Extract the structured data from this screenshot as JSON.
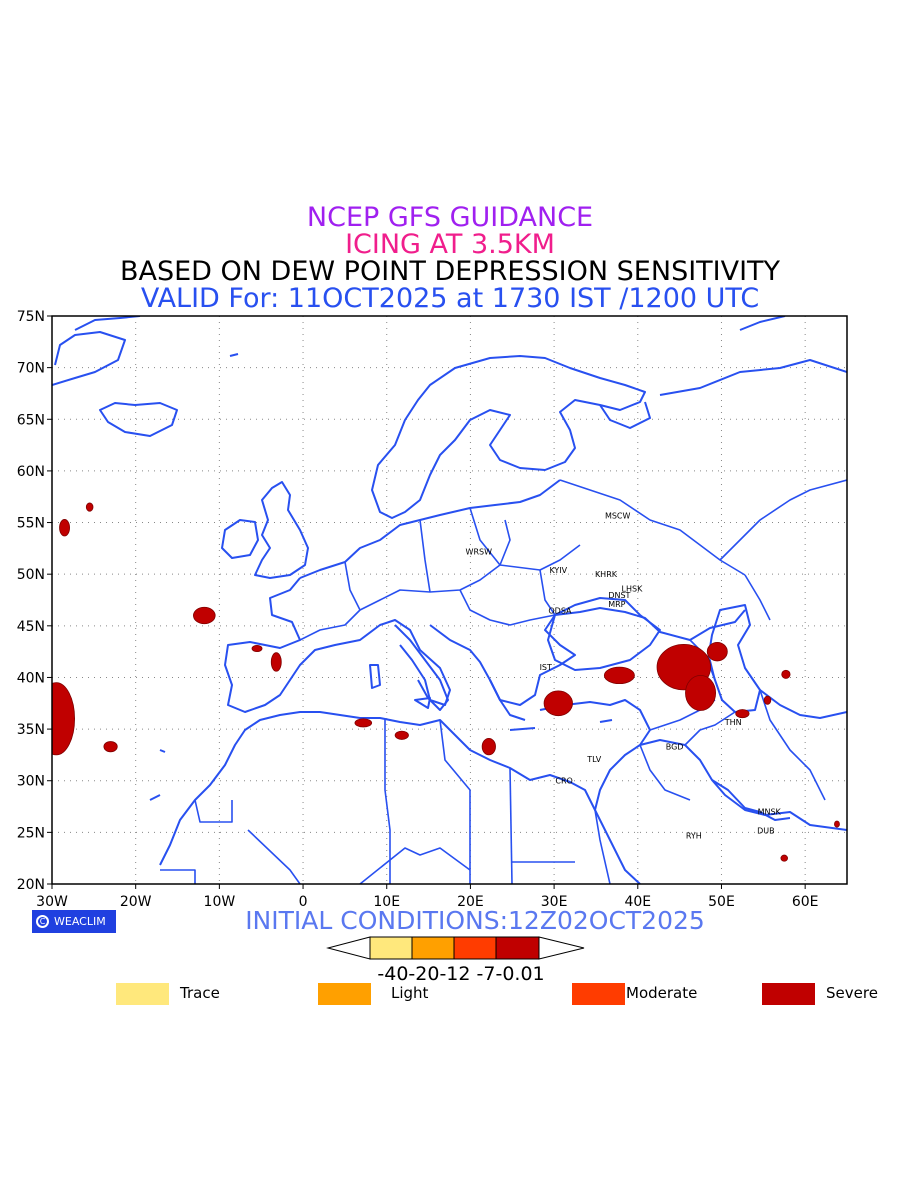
{
  "titles": {
    "line1": "NCEP GFS GUIDANCE",
    "line2": "ICING AT 3.5KM",
    "line3": "BASED ON DEW POINT DEPRESSION SENSITIVITY",
    "line4": "VALID For: 11OCT2025 at 1730 IST /1200 UTC"
  },
  "axes": {
    "x_ticks": [
      "30W",
      "20W",
      "10W",
      "0",
      "10E",
      "20E",
      "30E",
      "40E",
      "50E",
      "60E"
    ],
    "y_ticks": [
      "75N",
      "70N",
      "65N",
      "60N",
      "55N",
      "50N",
      "45N",
      "40N",
      "35N",
      "30N",
      "25N",
      "20N"
    ],
    "lon_range": [
      -30,
      65
    ],
    "lat_range": [
      20,
      75
    ],
    "grid": "dotted"
  },
  "cities": [
    {
      "label": "MSCW",
      "lon": 37.6,
      "lat": 55.7
    },
    {
      "label": "WRSW",
      "lon": 21.0,
      "lat": 52.2
    },
    {
      "label": "KYIV",
      "lon": 30.5,
      "lat": 50.4
    },
    {
      "label": "KHRK",
      "lon": 36.2,
      "lat": 50.0
    },
    {
      "label": "LHSK",
      "lon": 39.3,
      "lat": 48.6
    },
    {
      "label": "DNST",
      "lon": 37.8,
      "lat": 48.0
    },
    {
      "label": "MRP",
      "lon": 37.5,
      "lat": 47.1
    },
    {
      "label": "ODSA",
      "lon": 30.7,
      "lat": 46.5
    },
    {
      "label": "IST",
      "lon": 29.0,
      "lat": 41.0
    },
    {
      "label": "THN",
      "lon": 51.4,
      "lat": 35.7
    },
    {
      "label": "BGD",
      "lon": 44.4,
      "lat": 33.3
    },
    {
      "label": "TLV",
      "lon": 34.8,
      "lat": 32.1
    },
    {
      "label": "CRO",
      "lon": 31.2,
      "lat": 30.0
    },
    {
      "label": "MNSK",
      "lon": 55.7,
      "lat": 27.0
    },
    {
      "label": "DUB",
      "lon": 55.3,
      "lat": 25.2
    },
    {
      "label": "RYH",
      "lon": 46.7,
      "lat": 24.7
    }
  ],
  "icing_areas": [
    {
      "category": "Severe",
      "lon": -29.5,
      "lat": 36,
      "r_lon": 2.2,
      "r_lat": 3.5
    },
    {
      "category": "Severe",
      "lon": -28.5,
      "lat": 54.5,
      "r_lon": 0.6,
      "r_lat": 0.8
    },
    {
      "category": "Severe",
      "lon": -25.5,
      "lat": 56.5,
      "r_lon": 0.4,
      "r_lat": 0.4
    },
    {
      "category": "Severe",
      "lon": -23.0,
      "lat": 33.3,
      "r_lon": 0.8,
      "r_lat": 0.5
    },
    {
      "category": "Severe",
      "lon": -11.8,
      "lat": 46.0,
      "r_lon": 1.3,
      "r_lat": 0.8
    },
    {
      "category": "Severe",
      "lon": -3.2,
      "lat": 41.5,
      "r_lon": 0.6,
      "r_lat": 0.9
    },
    {
      "category": "Severe",
      "lon": -5.5,
      "lat": 42.8,
      "r_lon": 0.6,
      "r_lat": 0.3
    },
    {
      "category": "Severe",
      "lon": 7.2,
      "lat": 35.6,
      "r_lon": 1.0,
      "r_lat": 0.4
    },
    {
      "category": "Severe",
      "lon": 11.8,
      "lat": 34.4,
      "r_lon": 0.8,
      "r_lat": 0.4
    },
    {
      "category": "Severe",
      "lon": 22.2,
      "lat": 33.3,
      "r_lon": 0.8,
      "r_lat": 0.8
    },
    {
      "category": "Severe",
      "lon": 30.5,
      "lat": 37.5,
      "r_lon": 1.7,
      "r_lat": 1.2
    },
    {
      "category": "Severe",
      "lon": 37.8,
      "lat": 40.2,
      "r_lon": 1.8,
      "r_lat": 0.8
    },
    {
      "category": "Severe",
      "lon": 45.5,
      "lat": 41.0,
      "r_lon": 3.2,
      "r_lat": 2.2
    },
    {
      "category": "Severe",
      "lon": 47.5,
      "lat": 38.5,
      "r_lon": 1.8,
      "r_lat": 1.7
    },
    {
      "category": "Severe",
      "lon": 49.5,
      "lat": 42.5,
      "r_lon": 1.2,
      "r_lat": 0.9
    },
    {
      "category": "Severe",
      "lon": 52.5,
      "lat": 36.5,
      "r_lon": 0.8,
      "r_lat": 0.4
    },
    {
      "category": "Severe",
      "lon": 55.5,
      "lat": 37.8,
      "r_lon": 0.4,
      "r_lat": 0.4
    },
    {
      "category": "Severe",
      "lon": 57.7,
      "lat": 40.3,
      "r_lon": 0.5,
      "r_lat": 0.4
    },
    {
      "category": "Severe",
      "lon": 63.8,
      "lat": 25.8,
      "r_lon": 0.3,
      "r_lat": 0.3
    },
    {
      "category": "Severe",
      "lon": 57.5,
      "lat": 22.5,
      "r_lon": 0.4,
      "r_lat": 0.3
    }
  ],
  "colorbar": {
    "ticks": "-40-20-12 -7-0.01",
    "colors": [
      "#ffe87c",
      "#ffa000",
      "#ff3c00",
      "#c00000"
    ]
  },
  "initial": "INITIAL CONDITIONS:12Z02OCT2025",
  "logo": "WEACLIM",
  "legend": [
    {
      "label": "Trace",
      "color": "#ffe87c"
    },
    {
      "label": "Light",
      "color": "#ffa000"
    },
    {
      "label": "Moderate",
      "color": "#ff3c00"
    },
    {
      "label": "Severe",
      "color": "#c00000"
    }
  ],
  "colors": {
    "coast": "#2850f0",
    "grid": "#888888"
  }
}
